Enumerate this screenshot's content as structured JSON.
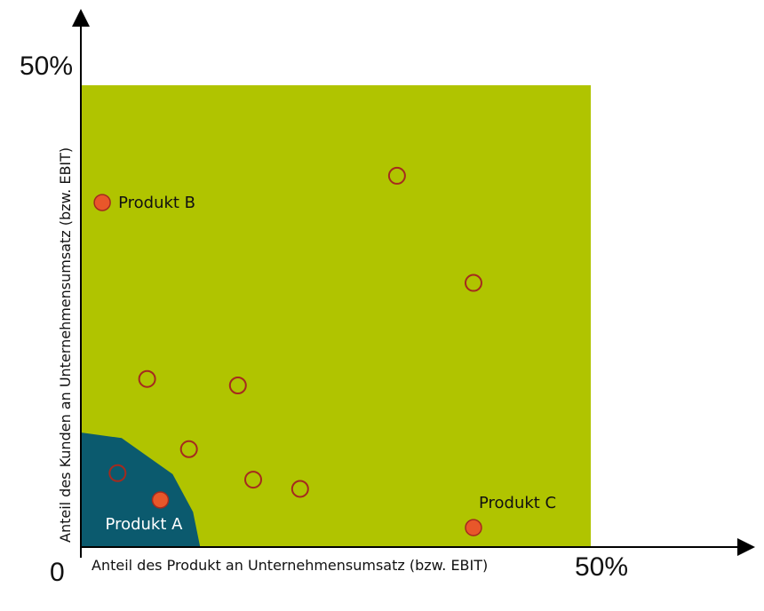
{
  "chart_data": {
    "type": "scatter",
    "title": "",
    "xlabel": "Anteil des Produkt an Unternehmensumsatz (bzw. EBIT)",
    "ylabel": "Anteil des Kunden an Unternehmensumsatz (bzw. EBIT)",
    "xlim": [
      0,
      50
    ],
    "ylim": [
      0,
      50
    ],
    "origin_label": "0",
    "x_max_label": "50%",
    "y_max_label": "50%",
    "grid": false,
    "colors": {
      "plot_area": "#b0c400",
      "low_zone": "#0b5a6e",
      "filled_point": "#e8572a",
      "point_outline": "#a52a1e",
      "axis": "#000000"
    },
    "low_zone_boundary": [
      [
        0,
        12.4
      ],
      [
        4,
        11.8
      ],
      [
        9,
        7.9
      ],
      [
        11,
        3.8
      ],
      [
        11.7,
        0
      ]
    ],
    "points_unlabeled": [
      [
        3.6,
        8.0
      ],
      [
        6.5,
        18.2
      ],
      [
        10.6,
        10.6
      ],
      [
        15.4,
        17.5
      ],
      [
        16.9,
        7.3
      ],
      [
        21.5,
        6.3
      ],
      [
        31.0,
        40.2
      ],
      [
        38.5,
        28.6
      ]
    ],
    "points_labeled": [
      {
        "label": "Produkt A",
        "x": 7.8,
        "y": 5.1,
        "label_color": "#ffffff"
      },
      {
        "label": "Produkt B",
        "x": 2.1,
        "y": 37.3,
        "label_color": "#111111"
      },
      {
        "label": "Produkt C",
        "x": 38.5,
        "y": 2.1,
        "label_color": "#111111"
      }
    ]
  }
}
